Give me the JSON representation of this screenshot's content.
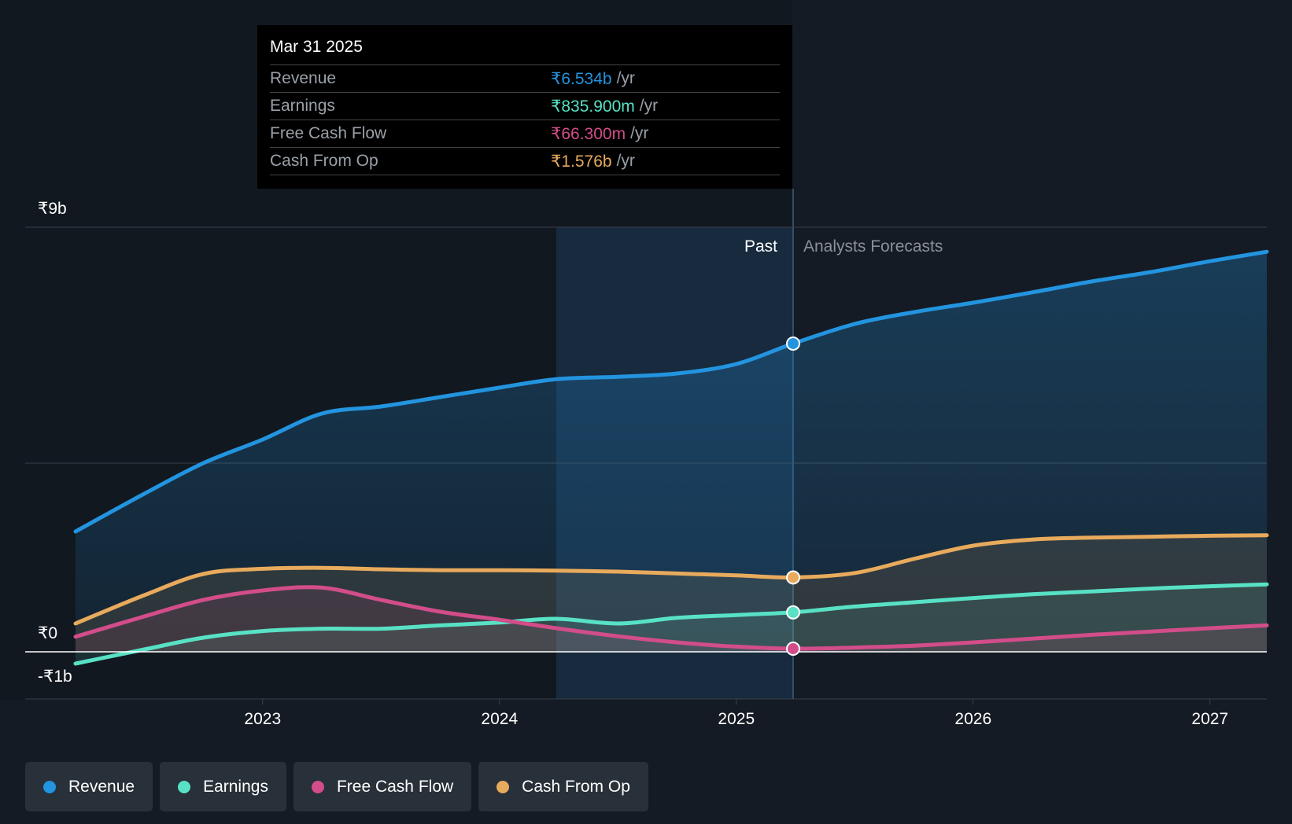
{
  "chart_data": {
    "type": "line",
    "x_ticks": [
      2023,
      2024,
      2025,
      2026,
      2027
    ],
    "x_tick_labels": [
      "2023",
      "2024",
      "2025",
      "2026",
      "2027"
    ],
    "xlim": [
      2022.21,
      2027.24
    ],
    "ylim": [
      -1,
      9
    ],
    "y_tick_labels": [
      {
        "value": 9,
        "label": "₹9b"
      },
      {
        "value": 0,
        "label": "₹0"
      },
      {
        "value": -1,
        "label": "-₹1b"
      }
    ],
    "gridlines": [
      9,
      4
    ],
    "past_label": "Past",
    "forecast_label": "Analysts Forecasts",
    "divider_x": 2025.24,
    "highlight_range": [
      2024.24,
      2025.24
    ],
    "series": [
      {
        "name": "Revenue",
        "color": "#2394df",
        "x": [
          2022.21,
          2022.5,
          2022.75,
          2023.0,
          2023.25,
          2023.5,
          2023.75,
          2024.0,
          2024.24,
          2024.5,
          2024.75,
          2025.0,
          2025.24,
          2025.5,
          2025.75,
          2026.0,
          2026.25,
          2026.5,
          2026.75,
          2027.0,
          2027.24
        ],
        "values": [
          2.55,
          3.35,
          4.0,
          4.5,
          5.05,
          5.2,
          5.4,
          5.6,
          5.78,
          5.83,
          5.9,
          6.1,
          6.534,
          6.95,
          7.2,
          7.4,
          7.62,
          7.85,
          8.05,
          8.28,
          8.48
        ]
      },
      {
        "name": "Earnings",
        "color": "#58e1c5",
        "x": [
          2022.21,
          2022.5,
          2022.75,
          2023.0,
          2023.25,
          2023.5,
          2023.75,
          2024.0,
          2024.24,
          2024.5,
          2024.75,
          2025.0,
          2025.24,
          2025.5,
          2025.75,
          2026.0,
          2026.25,
          2026.5,
          2026.75,
          2027.0,
          2027.24
        ],
        "values": [
          -0.25,
          0.05,
          0.3,
          0.44,
          0.49,
          0.49,
          0.56,
          0.62,
          0.7,
          0.6,
          0.72,
          0.78,
          0.8359,
          0.96,
          1.05,
          1.14,
          1.22,
          1.28,
          1.34,
          1.39,
          1.43
        ]
      },
      {
        "name": "Free Cash Flow",
        "color": "#d24d8a",
        "x": [
          2022.21,
          2022.5,
          2022.75,
          2023.0,
          2023.25,
          2023.5,
          2023.75,
          2024.0,
          2024.24,
          2024.5,
          2024.75,
          2025.0,
          2025.24,
          2025.5,
          2025.75,
          2026.0,
          2026.25,
          2026.5,
          2026.75,
          2027.0,
          2027.24
        ],
        "values": [
          0.32,
          0.75,
          1.1,
          1.3,
          1.36,
          1.1,
          0.85,
          0.68,
          0.5,
          0.33,
          0.2,
          0.11,
          0.0663,
          0.09,
          0.13,
          0.2,
          0.28,
          0.36,
          0.43,
          0.5,
          0.56
        ]
      },
      {
        "name": "Cash From Op",
        "color": "#e8aa5c",
        "x": [
          2022.21,
          2022.5,
          2022.75,
          2023.0,
          2023.25,
          2023.5,
          2023.75,
          2024.0,
          2024.24,
          2024.5,
          2024.75,
          2025.0,
          2025.24,
          2025.5,
          2025.75,
          2026.0,
          2026.25,
          2026.5,
          2026.75,
          2027.0,
          2027.24
        ],
        "values": [
          0.6,
          1.2,
          1.65,
          1.76,
          1.78,
          1.75,
          1.73,
          1.73,
          1.72,
          1.7,
          1.66,
          1.62,
          1.576,
          1.67,
          1.97,
          2.25,
          2.38,
          2.42,
          2.44,
          2.46,
          2.47
        ]
      }
    ]
  },
  "tooltip": {
    "date": "Mar 31 2025",
    "rows": [
      {
        "label": "Revenue",
        "value": "₹6.534b",
        "unit": "/yr",
        "color": "#2394df"
      },
      {
        "label": "Earnings",
        "value": "₹835.900m",
        "unit": "/yr",
        "color": "#58e1c5"
      },
      {
        "label": "Free Cash Flow",
        "value": "₹66.300m",
        "unit": "/yr",
        "color": "#d24d8a"
      },
      {
        "label": "Cash From Op",
        "value": "₹1.576b",
        "unit": "/yr",
        "color": "#e8aa5c"
      }
    ]
  },
  "legend": [
    {
      "label": "Revenue",
      "color": "#2394df"
    },
    {
      "label": "Earnings",
      "color": "#58e1c5"
    },
    {
      "label": "Free Cash Flow",
      "color": "#d24d8a"
    },
    {
      "label": "Cash From Op",
      "color": "#e8aa5c"
    }
  ]
}
